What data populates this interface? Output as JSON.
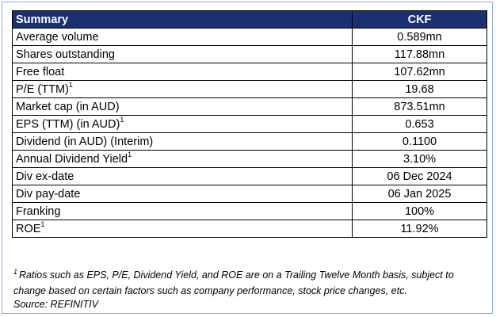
{
  "table": {
    "header_label": "Summary",
    "header_value": "CKF",
    "rows": [
      {
        "label": "Average volume",
        "sup": "",
        "value": "0.589mn"
      },
      {
        "label": "Shares outstanding",
        "sup": "",
        "value": "117.88mn"
      },
      {
        "label": "Free float",
        "sup": "",
        "value": "107.62mn"
      },
      {
        "label": "P/E (TTM)",
        "sup": "1",
        "value": "19.68"
      },
      {
        "label": "Market cap (in AUD)",
        "sup": "",
        "value": "873.51mn"
      },
      {
        "label": "EPS (TTM) (in AUD)",
        "sup": "1",
        "value": "0.653"
      },
      {
        "label": "Dividend (in AUD) (Interim)",
        "sup": "",
        "value": "0.1100"
      },
      {
        "label": "Annual Dividend Yield",
        "sup": "1",
        "value": "3.10%"
      },
      {
        "label": "Div ex-date",
        "sup": "",
        "value": "06 Dec 2024"
      },
      {
        "label": "Div pay-date",
        "sup": "",
        "value": "06 Jan 2025"
      },
      {
        "label": "Franking",
        "sup": "",
        "value": "100%"
      },
      {
        "label": "ROE",
        "sup": "1",
        "value": "11.92%"
      }
    ]
  },
  "footnote": {
    "mark": "1",
    "text": "Ratios such as EPS, P/E, Dividend Yield, and ROE are on a Trailing Twelve Month basis, subject to change based on certain factors such as company performance, stock price changes, etc."
  },
  "source": "Source: REFINITIV",
  "colors": {
    "header_bg": "#1b2f73",
    "header_text": "#ffffff",
    "frame_border": "#8eaadb"
  }
}
